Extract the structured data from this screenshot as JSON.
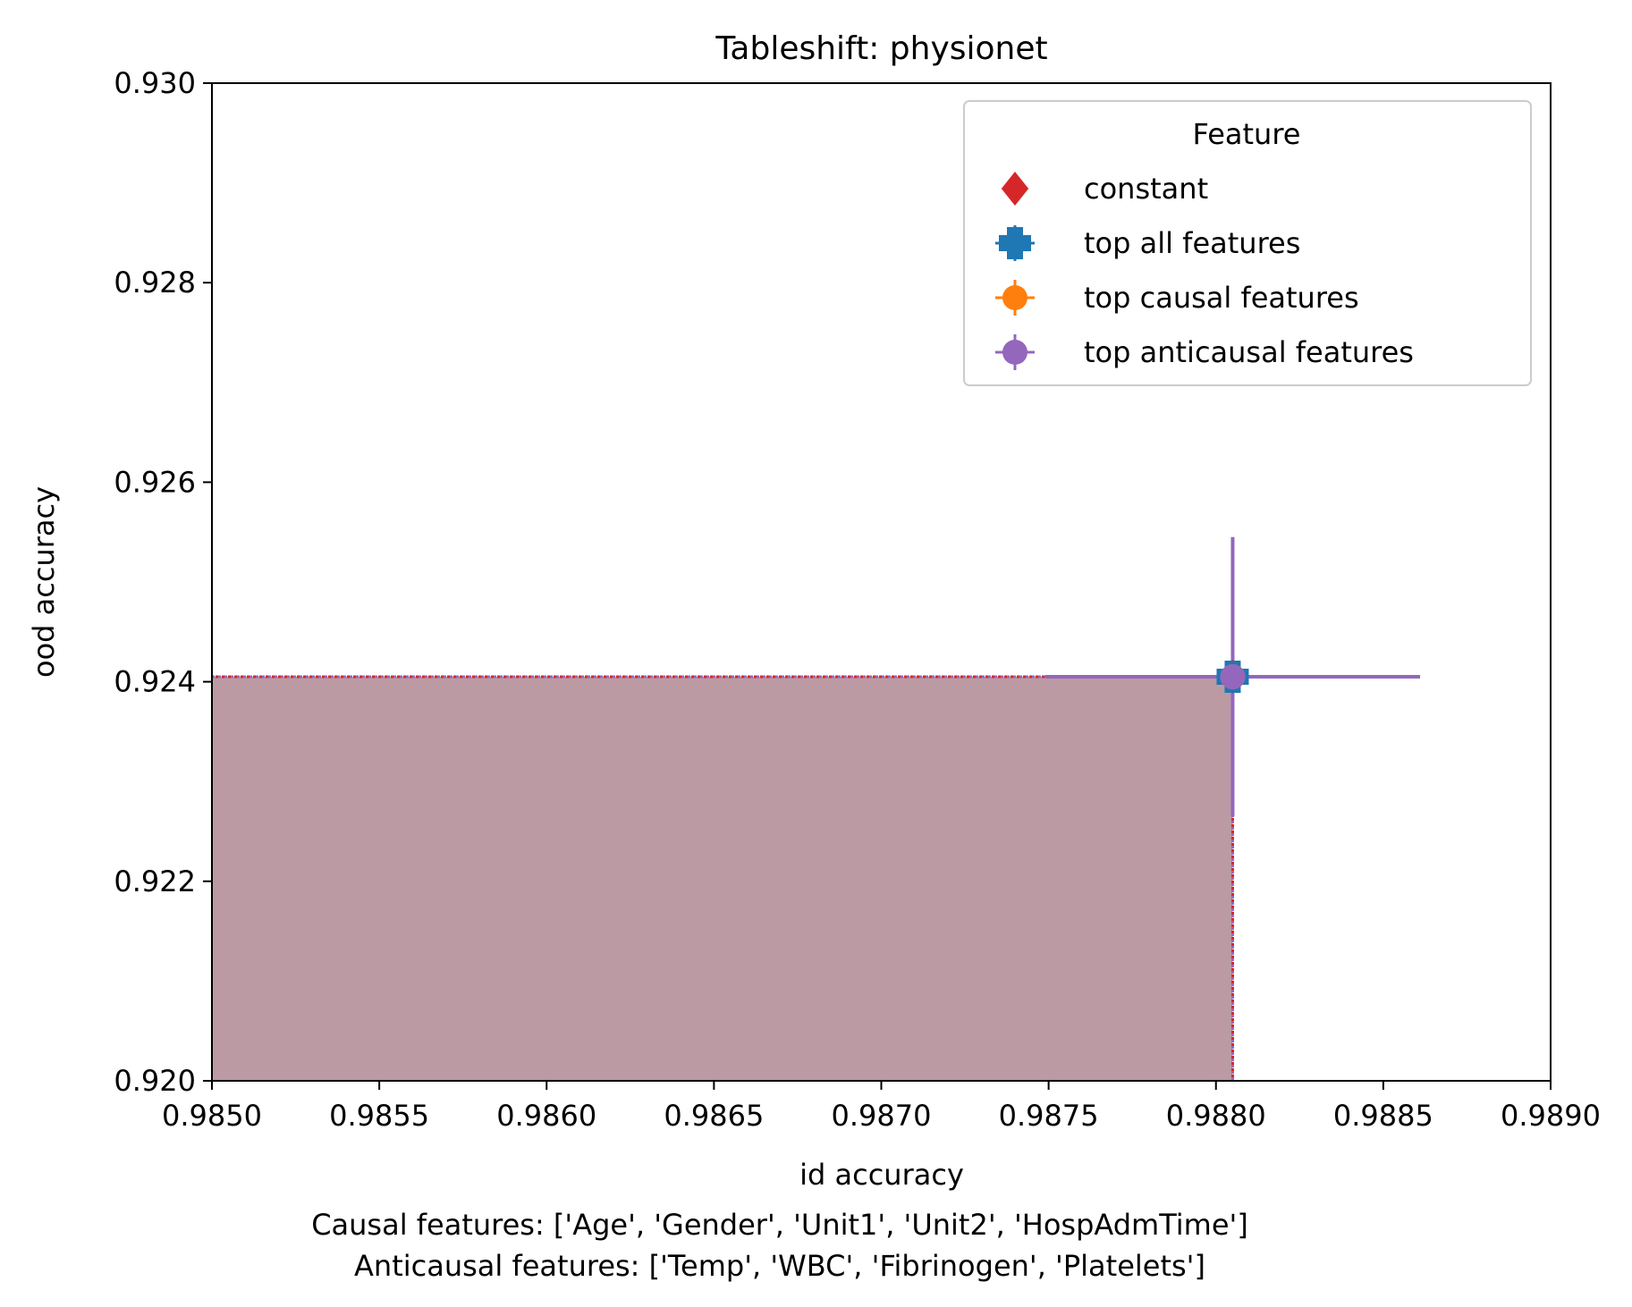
{
  "chart_data": {
    "type": "scatter",
    "title": "Tableshift: physionet",
    "xlabel": "id accuracy",
    "ylabel": "ood accuracy",
    "xlim": [
      0.985,
      0.989
    ],
    "ylim": [
      0.92,
      0.93
    ],
    "x_ticks": [
      "0.9850",
      "0.9855",
      "0.9860",
      "0.9865",
      "0.9870",
      "0.9875",
      "0.9880",
      "0.9885",
      "0.9890"
    ],
    "y_ticks": [
      "0.920",
      "0.922",
      "0.924",
      "0.926",
      "0.928",
      "0.930"
    ],
    "grid": false,
    "legend": {
      "title": "Feature",
      "placement": "top-right",
      "entries": [
        "constant",
        "top all features",
        "top causal features",
        "top anticausal features"
      ]
    },
    "series": [
      {
        "name": "constant",
        "marker": "diamond",
        "color": "#d62728",
        "x": 0.98805,
        "y": 0.92405
      },
      {
        "name": "top all features",
        "marker": "plus",
        "color": "#1f77b4",
        "x": 0.98805,
        "y": 0.92405,
        "x_err": 0.0,
        "y_err": 0.0
      },
      {
        "name": "top causal features",
        "marker": "circle",
        "color": "#ff7f0e",
        "x": 0.98805,
        "y": 0.92405,
        "x_err": 0.0,
        "y_err": 0.0
      },
      {
        "name": "top anticausal features",
        "marker": "circle",
        "color": "#9467bd",
        "x": 0.98805,
        "y": 0.92405,
        "x_err": 0.00056,
        "y_err": 0.0014
      }
    ],
    "shaded_region": {
      "x": [
        0.985,
        0.98805
      ],
      "y": [
        0.92,
        0.92405
      ],
      "color": "#bb9aa4"
    },
    "annotations": [
      "Causal features: ['Age', 'Gender', 'Unit1', 'Unit2', 'HospAdmTime']",
      "Anticausal features: ['Temp', 'WBC', 'Fibrinogen', 'Platelets']"
    ]
  }
}
